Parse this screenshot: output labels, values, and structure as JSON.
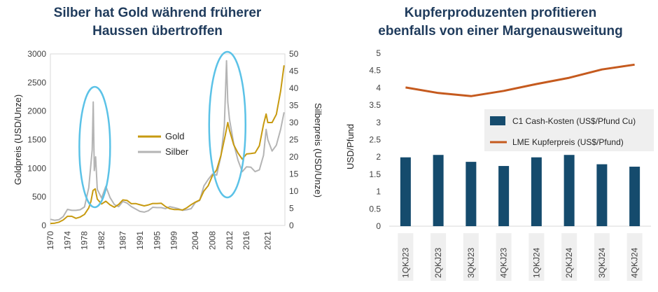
{
  "left_chart": {
    "title_line1": "Silber hat Gold während früherer",
    "title_line2": "Haussen übertroffen",
    "colors": {
      "gold": "#c79a10",
      "silver": "#b4b4b4",
      "highlight": "#5bc2e7"
    },
    "chart_data": {
      "type": "line",
      "title": "Silber hat Gold während früherer Haussen übertroffen",
      "xlabel": "",
      "ylabel": "Goldpreis (USD/Unze)",
      "y2label": "Silberpreis (USD/Unze)",
      "ylim": [
        0,
        3000
      ],
      "y2lim": [
        0,
        50
      ],
      "xlim": [
        1970,
        2025
      ],
      "x_ticks": [
        "1970",
        "1974",
        "1978",
        "1982",
        "1987",
        "1991",
        "1995",
        "1999",
        "2004",
        "2008",
        "2012",
        "2016",
        "2021"
      ],
      "y_ticks": [
        "0",
        "500",
        "1000",
        "1500",
        "2000",
        "2500",
        "3000"
      ],
      "y2_ticks": [
        "0",
        "5",
        "10",
        "15",
        "20",
        "25",
        "30",
        "35",
        "40",
        "45",
        "50"
      ],
      "legend_position": "center",
      "series": [
        {
          "name": "Gold",
          "axis": "left",
          "x": [
            1970,
            1971,
            1972,
            1973,
            1974,
            1975,
            1976,
            1977,
            1978,
            1979,
            1979.5,
            1980,
            1980.5,
            1981,
            1982,
            1983,
            1984,
            1985,
            1986,
            1987,
            1988,
            1989,
            1990,
            1991,
            1992,
            1993,
            1994,
            1995,
            1996,
            1997,
            1998,
            1999,
            2000,
            2001,
            2002,
            2003,
            2004,
            2005,
            2006,
            2007,
            2008,
            2009,
            2010,
            2011,
            2011.6,
            2012,
            2013,
            2014,
            2015,
            2016,
            2017,
            2018,
            2019,
            2020,
            2020.6,
            2021,
            2022,
            2023,
            2024,
            2024.8
          ],
          "y": [
            36,
            41,
            58,
            97,
            160,
            160,
            125,
            148,
            194,
            307,
            420,
            612,
            640,
            460,
            376,
            424,
            360,
            318,
            368,
            447,
            437,
            381,
            383,
            363,
            343,
            360,
            384,
            384,
            388,
            331,
            294,
            279,
            279,
            271,
            310,
            364,
            409,
            445,
            604,
            696,
            872,
            972,
            1225,
            1571,
            1800,
            1669,
            1411,
            1266,
            1160,
            1250,
            1257,
            1268,
            1393,
            1770,
            1950,
            1800,
            1800,
            1943,
            2350,
            2800
          ]
        },
        {
          "name": "Silber",
          "axis": "right",
          "x": [
            1970,
            1971,
            1972,
            1973,
            1974,
            1975,
            1976,
            1977,
            1978,
            1979,
            1979.8,
            1980.05,
            1980.3,
            1980.6,
            1981,
            1982,
            1983,
            1984,
            1985,
            1986,
            1987,
            1988,
            1989,
            1990,
            1991,
            1992,
            1993,
            1994,
            1995,
            1996,
            1997,
            1998,
            1999,
            2000,
            2001,
            2002,
            2003,
            2004,
            2005,
            2006,
            2007,
            2008,
            2009,
            2010,
            2010.8,
            2011.3,
            2011.6,
            2012,
            2013,
            2014,
            2015,
            2016,
            2017,
            2018,
            2019,
            2020,
            2020.6,
            2021,
            2022,
            2023,
            2024,
            2024.8
          ],
          "y": [
            1.8,
            1.5,
            1.7,
            2.6,
            4.7,
            4.4,
            4.4,
            4.6,
            5.4,
            11,
            22,
            36,
            16,
            20,
            10.5,
            8,
            11.4,
            8.1,
            6.1,
            5.5,
            7,
            6.5,
            5.5,
            4.8,
            4.1,
            3.9,
            4.3,
            5.3,
            5.2,
            5.2,
            4.9,
            5.5,
            5.2,
            4.9,
            4.4,
            4.6,
            4.9,
            6.7,
            7.3,
            11.5,
            13.4,
            15,
            14.7,
            20.2,
            29,
            48,
            36,
            31,
            23.8,
            19,
            15.7,
            17.1,
            17,
            15.7,
            16.2,
            20.5,
            28,
            25,
            21.7,
            23.4,
            28,
            33
          ]
        }
      ]
    }
  },
  "right_chart": {
    "title_line1": "Kupferproduzenten profitieren",
    "title_line2": "ebenfalls von einer Margenausweitung",
    "colors": {
      "bars": "#154b6d",
      "line": "#c55a1e",
      "label_bg": "#efefef"
    },
    "chart_data": {
      "type": "bar",
      "title": "Kupferproduzenten profitieren ebenfalls von einer Margenausweitung",
      "xlabel": "",
      "ylabel": "USD/Pfund",
      "ylim": [
        0,
        5
      ],
      "y_ticks": [
        "0",
        "0.5",
        "1",
        "1.5",
        "2",
        "2.5",
        "3",
        "3.5",
        "4",
        "4.5",
        "5"
      ],
      "categories": [
        "1QKJ23",
        "2QKJ23",
        "3QKJ23",
        "4QKJ23",
        "1QKJ24",
        "2QKJ24",
        "3QKJ24",
        "4QKJ24"
      ],
      "legend_position": "right",
      "series": [
        {
          "name": "C1 Cash-Kosten (US$/Pfund Cu)",
          "kind": "bar",
          "values": [
            1.99,
            2.06,
            1.86,
            1.74,
            1.99,
            2.06,
            1.79,
            1.72
          ]
        },
        {
          "name": "LME Kupferpreis (US$/Pfund)",
          "kind": "line",
          "values": [
            4.01,
            3.85,
            3.76,
            3.91,
            4.11,
            4.29,
            4.53,
            4.67
          ]
        }
      ]
    }
  }
}
